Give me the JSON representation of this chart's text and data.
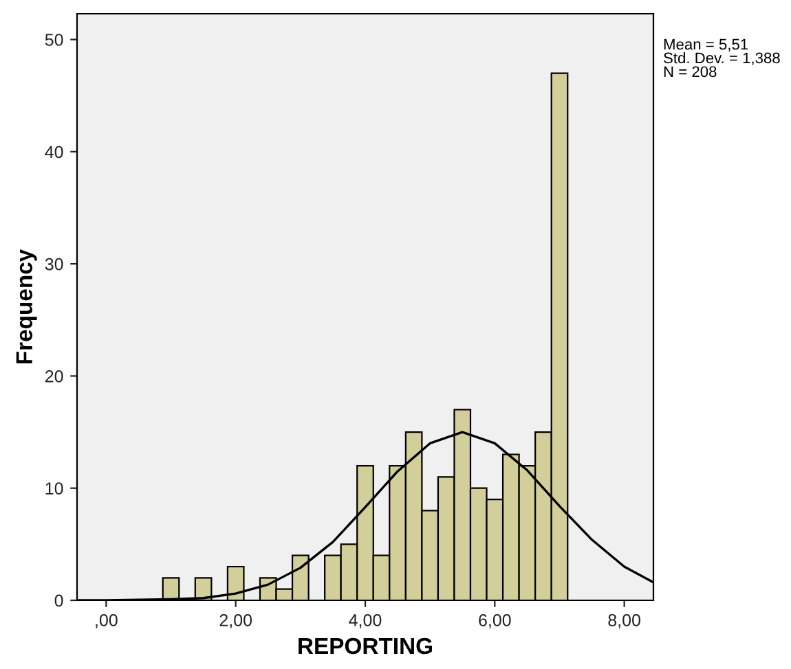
{
  "chart_data": {
    "type": "histogram",
    "xlabel": "REPORTING",
    "ylabel": "Frequency",
    "bins": [
      0.875,
      1.125,
      1.375,
      1.625,
      1.875,
      2.125,
      2.375,
      2.625,
      2.875,
      3.125,
      3.375,
      3.625,
      3.875,
      4.125,
      4.375,
      4.625,
      4.875,
      5.125,
      5.375,
      5.625,
      5.875,
      6.125,
      6.375,
      6.625,
      6.875,
      7.125
    ],
    "values": [
      2,
      0,
      2,
      0,
      3,
      0,
      2,
      1,
      4,
      0,
      4,
      5,
      12,
      4,
      12,
      15,
      8,
      11,
      17,
      10,
      9,
      13,
      12,
      15,
      47
    ],
    "color": "#d3cf9b",
    "series": [
      {
        "type": "line",
        "color": "#000000",
        "x": [
          -0.45,
          0,
          1,
          1.5,
          2,
          2.5,
          3,
          3.5,
          4,
          4.5,
          5,
          5.5,
          6,
          6.5,
          7,
          7.5,
          8,
          8.45
        ],
        "values": [
          0,
          0,
          0.1,
          0.2,
          0.6,
          1.4,
          2.9,
          5.2,
          8.3,
          11.5,
          14,
          15,
          14,
          11.6,
          8.4,
          5.4,
          3,
          1.6
        ]
      }
    ],
    "xlim": [
      -0.45,
      8.45
    ],
    "xticks": [
      {
        "value": 0,
        "label": ",00"
      },
      {
        "value": 2,
        "label": "2,00"
      },
      {
        "value": 4,
        "label": "4,00"
      },
      {
        "value": 6,
        "label": "6,00"
      },
      {
        "value": 8,
        "label": "8,00"
      }
    ],
    "ylim": [
      0,
      52.3
    ],
    "yticks": [
      0,
      10,
      20,
      30,
      40,
      50
    ],
    "annotations": [
      "Mean = 5,51\nStd. Dev. = 1,388\nN = 208"
    ],
    "grid": false,
    "legend": false
  }
}
